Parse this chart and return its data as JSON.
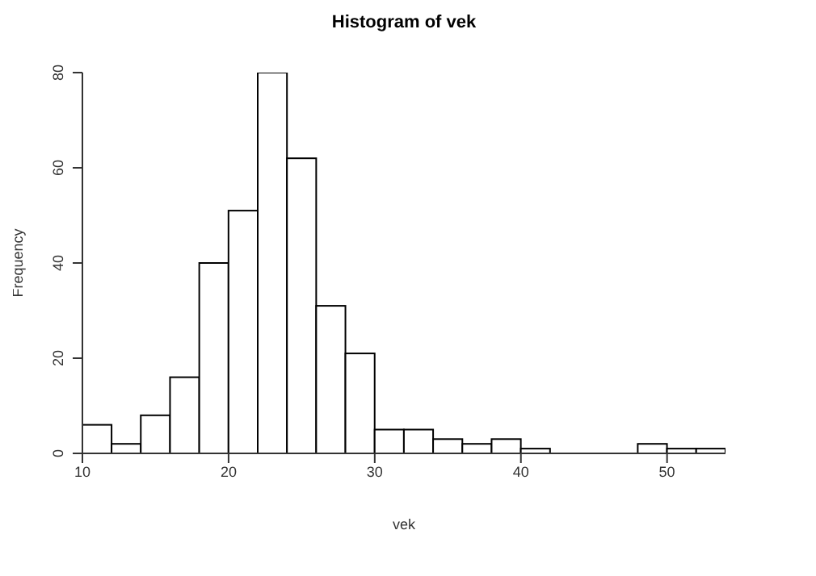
{
  "chart_data": {
    "type": "histogram",
    "title": "Histogram of vek",
    "xlabel": "vek",
    "ylabel": "Frequency",
    "bins": [
      10,
      12,
      14,
      16,
      18,
      20,
      22,
      24,
      26,
      28,
      30,
      32,
      34,
      36,
      38,
      40,
      42,
      44,
      46,
      48,
      50,
      52,
      54
    ],
    "values": [
      6,
      2,
      8,
      16,
      40,
      51,
      80,
      62,
      31,
      21,
      5,
      5,
      3,
      2,
      3,
      1,
      0,
      0,
      0,
      2,
      1,
      1
    ],
    "color": "#ffffff",
    "xlim": [
      10,
      54
    ],
    "xticks": [
      10,
      20,
      30,
      40,
      50
    ],
    "ylim": [
      0,
      80
    ],
    "yticks": [
      0,
      20,
      40,
      60,
      80
    ]
  }
}
